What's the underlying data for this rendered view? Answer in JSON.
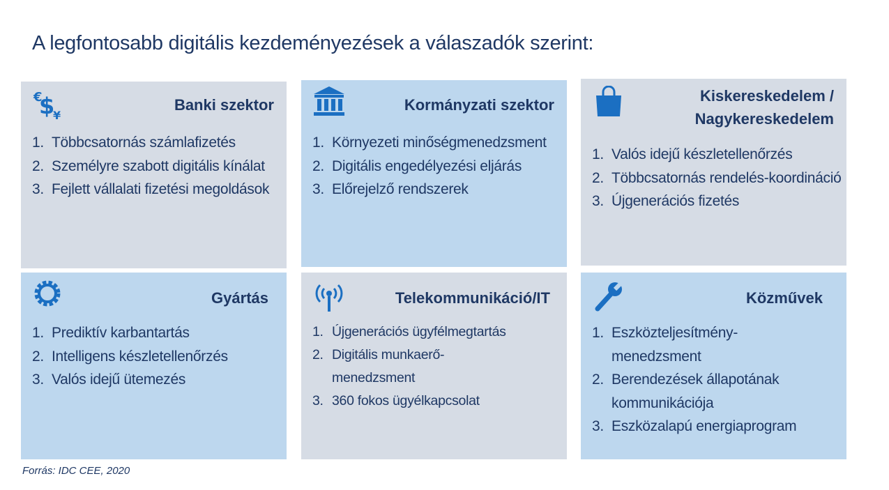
{
  "title": "A legfontosabb digitális kezdeményezések a válaszadók szerint:",
  "colors": {
    "gray_box": "#d6dce5",
    "blue_box": "#bdd7ee",
    "text": "#1f3864",
    "icon": "#1b6fc2"
  },
  "sectors": [
    {
      "title": "Banki szektor",
      "icon": "currency-icon",
      "items": [
        "Többcsatornás számlafizetés",
        "Személyre szabott digitális kínálat",
        "Fejlett vállalati fizetési megoldások"
      ]
    },
    {
      "title": "Kormányzati szektor",
      "icon": "government-building-icon",
      "items": [
        "Környezeti minőségmenedzsment",
        "Digitális engedélyezési eljárás",
        "Előrejelző rendszerek"
      ]
    },
    {
      "title": "Kiskereskedelem / Nagykereskedelem",
      "icon": "shopping-bag-icon",
      "items": [
        "Valós idejű készletellenőrzés",
        "Többcsatornás rendelés-koordináció",
        "Újgenerációs fizetés"
      ]
    },
    {
      "title": "Gyártás",
      "icon": "gear-icon",
      "items": [
        "Prediktív karbantartás",
        "Intelligens készletellenőrzés",
        "Valós idejű ütemezés"
      ]
    },
    {
      "title": "Telekommunikáció/IT",
      "icon": "antenna-icon",
      "items": [
        "Újgenerációs ügyfélmegtartás",
        "Digitális munkaerő-menedzsment",
        "360 fokos ügyélkapcsolat"
      ]
    },
    {
      "title": "Közművek",
      "icon": "wrench-icon",
      "items": [
        "Eszközteljesítmény-menedzsment",
        "Berendezések állapotának kommunikációja",
        "Eszközalapú energiaprogram"
      ]
    }
  ],
  "numbers": [
    "1.",
    "2.",
    "3."
  ],
  "source": "Forrás: IDC CEE, 2020"
}
